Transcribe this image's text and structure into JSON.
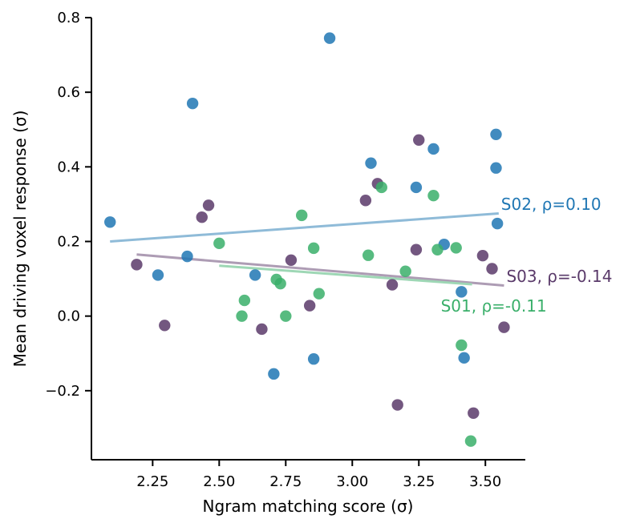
{
  "chart_data": {
    "type": "scatter",
    "title": "",
    "xlabel": "Ngram matching score (σ)",
    "ylabel": "Mean driving voxel response (σ)",
    "xlim": [
      2.02,
      3.65
    ],
    "ylim": [
      -0.385,
      0.8
    ],
    "xticks": [
      2.25,
      2.5,
      2.75,
      3.0,
      3.25,
      3.5
    ],
    "xtick_labels": [
      "2.25",
      "2.50",
      "2.75",
      "3.00",
      "3.25",
      "3.50"
    ],
    "yticks": [
      -0.2,
      0.0,
      0.2,
      0.4,
      0.6,
      0.8
    ],
    "ytick_labels": [
      "−0.2",
      "0.0",
      "0.2",
      "0.4",
      "0.6",
      "0.8"
    ],
    "grid": false,
    "series": [
      {
        "name": "S02",
        "label": "S02, ρ=0.10",
        "color": "#2077b4",
        "fit_color": "#8fbbd8",
        "fit": {
          "x": [
            2.09,
            3.55
          ],
          "y": [
            0.2,
            0.275
          ]
        },
        "points": [
          {
            "x": 2.09,
            "y": 0.252
          },
          {
            "x": 2.27,
            "y": 0.11
          },
          {
            "x": 2.38,
            "y": 0.16
          },
          {
            "x": 2.4,
            "y": 0.57
          },
          {
            "x": 2.635,
            "y": 0.11
          },
          {
            "x": 2.705,
            "y": -0.155
          },
          {
            "x": 2.855,
            "y": -0.115
          },
          {
            "x": 2.915,
            "y": 0.745
          },
          {
            "x": 3.07,
            "y": 0.41
          },
          {
            "x": 3.24,
            "y": 0.345
          },
          {
            "x": 3.305,
            "y": 0.448
          },
          {
            "x": 3.345,
            "y": 0.192
          },
          {
            "x": 3.41,
            "y": 0.065
          },
          {
            "x": 3.42,
            "y": -0.112
          },
          {
            "x": 3.54,
            "y": 0.487
          },
          {
            "x": 3.54,
            "y": 0.397
          },
          {
            "x": 3.545,
            "y": 0.248
          }
        ]
      },
      {
        "name": "S03",
        "label": "S03, ρ=-0.14",
        "color": "#5a3a6a",
        "fit_color": "#ad9cb4",
        "fit": {
          "x": [
            2.19,
            3.57
          ],
          "y": [
            0.165,
            0.082
          ]
        },
        "points": [
          {
            "x": 2.19,
            "y": 0.138
          },
          {
            "x": 2.295,
            "y": -0.025
          },
          {
            "x": 2.435,
            "y": 0.265
          },
          {
            "x": 2.46,
            "y": 0.297
          },
          {
            "x": 2.66,
            "y": -0.035
          },
          {
            "x": 2.77,
            "y": 0.15
          },
          {
            "x": 2.84,
            "y": 0.028
          },
          {
            "x": 3.05,
            "y": 0.31
          },
          {
            "x": 3.095,
            "y": 0.355
          },
          {
            "x": 3.15,
            "y": 0.084
          },
          {
            "x": 3.17,
            "y": -0.238
          },
          {
            "x": 3.24,
            "y": 0.178
          },
          {
            "x": 3.25,
            "y": 0.472
          },
          {
            "x": 3.455,
            "y": -0.26
          },
          {
            "x": 3.49,
            "y": 0.162
          },
          {
            "x": 3.525,
            "y": 0.127
          },
          {
            "x": 3.57,
            "y": -0.03
          }
        ]
      },
      {
        "name": "S01",
        "label": "S01, ρ=-0.11",
        "color": "#3aaf6a",
        "fit_color": "#9ed7b5",
        "fit": {
          "x": [
            2.5,
            3.45
          ],
          "y": [
            0.135,
            0.085
          ]
        },
        "points": [
          {
            "x": 2.5,
            "y": 0.195
          },
          {
            "x": 2.585,
            "y": 0.0
          },
          {
            "x": 2.595,
            "y": 0.042
          },
          {
            "x": 2.715,
            "y": 0.098
          },
          {
            "x": 2.73,
            "y": 0.087
          },
          {
            "x": 2.75,
            "y": 0.0
          },
          {
            "x": 2.81,
            "y": 0.27
          },
          {
            "x": 2.855,
            "y": 0.182
          },
          {
            "x": 2.875,
            "y": 0.06
          },
          {
            "x": 3.06,
            "y": 0.163
          },
          {
            "x": 3.11,
            "y": 0.345
          },
          {
            "x": 3.2,
            "y": 0.12
          },
          {
            "x": 3.305,
            "y": 0.323
          },
          {
            "x": 3.32,
            "y": 0.178
          },
          {
            "x": 3.39,
            "y": 0.183
          },
          {
            "x": 3.41,
            "y": -0.078
          },
          {
            "x": 3.445,
            "y": -0.335
          }
        ]
      }
    ]
  }
}
